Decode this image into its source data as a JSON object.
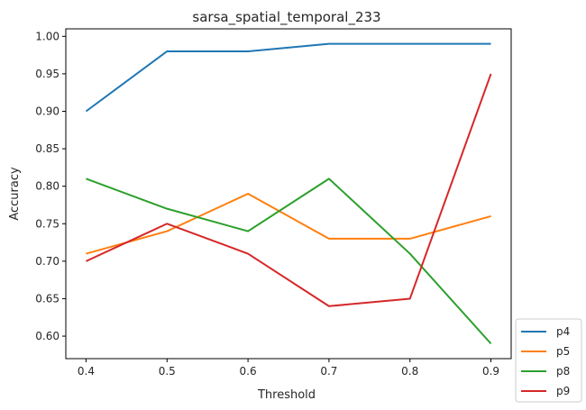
{
  "chart_data": {
    "type": "line",
    "title": "sarsa_spatial_temporal_233",
    "xlabel": "Threshold",
    "ylabel": "Accuracy",
    "x": [
      0.4,
      0.5,
      0.6,
      0.7,
      0.8,
      0.9
    ],
    "xlim": [
      0.375,
      0.925
    ],
    "ylim": [
      0.57,
      1.01
    ],
    "xticks": [
      "0.4",
      "0.5",
      "0.6",
      "0.7",
      "0.8",
      "0.9"
    ],
    "yticks": [
      "0.60",
      "0.65",
      "0.70",
      "0.75",
      "0.80",
      "0.85",
      "0.90",
      "0.95",
      "1.00"
    ],
    "grid": false,
    "legend_position": "outside-bottom-right",
    "series": [
      {
        "name": "p4",
        "color": "#1f77b4",
        "values": [
          0.9,
          0.98,
          0.98,
          0.99,
          0.99,
          0.99
        ]
      },
      {
        "name": "p5",
        "color": "#ff7f0e",
        "values": [
          0.71,
          0.74,
          0.79,
          0.73,
          0.73,
          0.76
        ]
      },
      {
        "name": "p8",
        "color": "#2ca02c",
        "values": [
          0.81,
          0.77,
          0.74,
          0.81,
          0.71,
          0.59
        ]
      },
      {
        "name": "p9",
        "color": "#d62728",
        "values": [
          0.7,
          0.75,
          0.71,
          0.64,
          0.65,
          0.95
        ]
      }
    ]
  }
}
